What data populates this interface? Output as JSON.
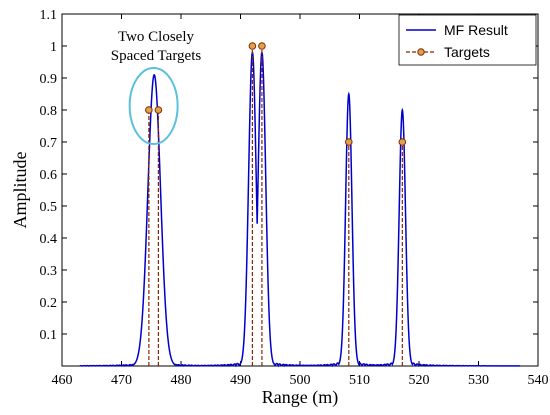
{
  "chart_data": {
    "type": "line",
    "title": "",
    "xlabel": "Range (m)",
    "ylabel": "Amplitude",
    "xlim": [
      460,
      540
    ],
    "ylim": [
      0,
      1.1
    ],
    "x_ticks": [
      460,
      470,
      480,
      490,
      500,
      510,
      520,
      530,
      540
    ],
    "y_ticks": [
      0.1,
      0.2,
      0.3,
      0.4,
      0.5,
      0.6,
      0.7,
      0.8,
      0.9,
      1,
      1.1
    ],
    "x_tick_labels": [
      "460",
      "470",
      "480",
      "490",
      "500",
      "510",
      "520",
      "530",
      "540"
    ],
    "y_tick_labels": [
      "0.1",
      "0.2",
      "0.3",
      "0.4",
      "0.5",
      "0.6",
      "0.7",
      "0.8",
      "0.9",
      "1",
      "1.1"
    ],
    "grid": false,
    "legend_position": "top-right",
    "series": [
      {
        "name": "MF Result",
        "style": "solid line",
        "color": "#0000CC",
        "x_range": [
          463,
          537
        ],
        "main_lobes": [
          {
            "x": 475.5,
            "peak": 0.91,
            "width": 1.5
          },
          {
            "x": 492.0,
            "peak": 0.98,
            "width": 0.9
          },
          {
            "x": 493.6,
            "peak": 0.98,
            "width": 0.9
          },
          {
            "x": 508.2,
            "peak": 0.85,
            "width": 0.75
          },
          {
            "x": 517.2,
            "peak": 0.8,
            "width": 0.75
          }
        ],
        "sidelobe_spacing": 1.1
      },
      {
        "name": "Targets",
        "style": "dashed stems with circle markers",
        "color": "#8B2500",
        "marker_fill": "#D9A54A",
        "x": [
          474.6,
          476.2,
          492.0,
          493.6,
          508.2,
          517.2
        ],
        "y": [
          0.8,
          0.8,
          1.0,
          1.0,
          0.7,
          0.7
        ]
      }
    ],
    "annotations": [
      {
        "text_lines": [
          "Two Closely",
          "Spaced Targets"
        ],
        "target_x": 475.4,
        "target_y": 0.8,
        "shape": "ellipse",
        "color": "#5BC0DE"
      }
    ]
  }
}
